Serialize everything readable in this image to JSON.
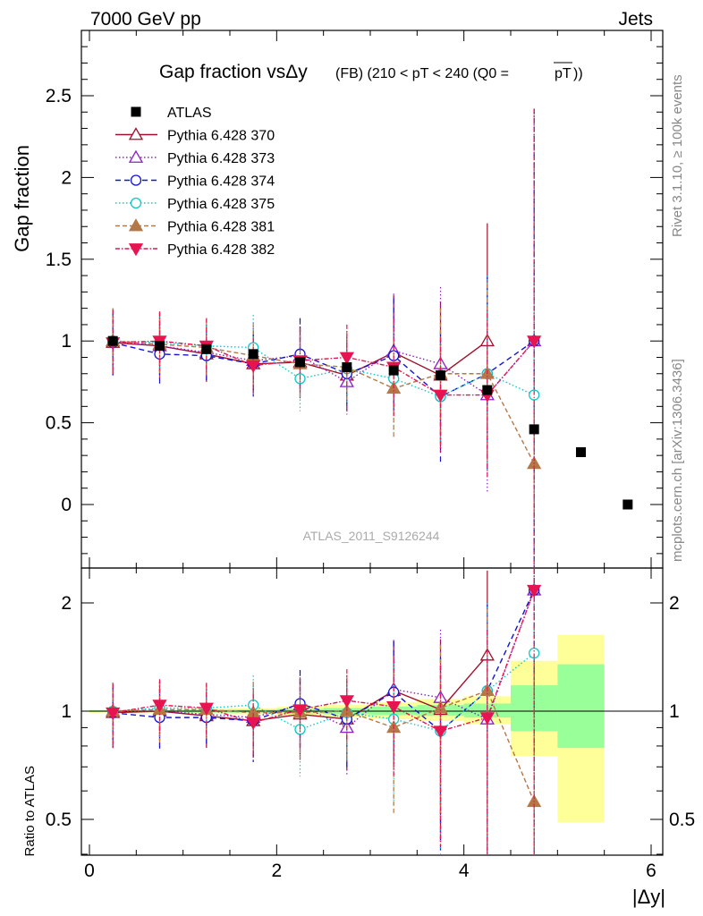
{
  "header": {
    "left": "7000 GeV pp",
    "right": "Jets"
  },
  "side_labels": {
    "rivet": "Rivet 3.1.10, ≥ 100k events",
    "mcplots": "mcplots.cern.ch [arXiv:1306.3436]"
  },
  "watermark": "ATLAS_2011_S9126244",
  "chart_data": {
    "type": "scatter",
    "title_main": "Gap fraction vsΔy",
    "title_sub": "(FB) (210 < pT < 240 (Q0 =",
    "title_pt": "pT",
    "title_close": "))",
    "xlabel": "|Δy|",
    "ylabel": "Gap fraction",
    "ratio_ylabel": "Ratio to ATLAS",
    "xlim": [
      -0.1,
      6.1
    ],
    "ylim": [
      -0.33,
      2.9
    ],
    "ratio_ylim": [
      0.35,
      2.3
    ],
    "xticks": [
      "0",
      "2",
      "4",
      "6"
    ],
    "yticks": [
      "0",
      "0.5",
      "1",
      "1.5",
      "2",
      "2.5"
    ],
    "ratio_yticks": [
      "0.5",
      "1",
      "2"
    ],
    "legend_position": "top-left",
    "x": [
      0.25,
      0.75,
      1.25,
      1.75,
      2.25,
      2.75,
      3.25,
      3.75,
      4.25,
      4.75,
      5.25,
      5.75
    ],
    "atlas": {
      "name": "ATLAS",
      "color": "#000000",
      "values": [
        1.0,
        0.97,
        0.95,
        0.92,
        0.87,
        0.84,
        0.82,
        0.79,
        0.7,
        0.46,
        0.32,
        0.0
      ],
      "band_edges": [
        0,
        0.5,
        1.0,
        1.5,
        2.0,
        2.5,
        3.0,
        3.5,
        4.0,
        4.5,
        5.0,
        5.5
      ],
      "band_yellow": [
        [
          0.99,
          1.01
        ],
        [
          0.99,
          1.01
        ],
        [
          0.985,
          1.015
        ],
        [
          0.98,
          1.02
        ],
        [
          0.97,
          1.03
        ],
        [
          0.96,
          1.04
        ],
        [
          0.95,
          1.06
        ],
        [
          0.94,
          1.08
        ],
        [
          0.92,
          1.1
        ],
        [
          0.75,
          1.38
        ],
        [
          0.49,
          1.63
        ]
      ],
      "band_green": [
        [
          0.995,
          1.005
        ],
        [
          0.995,
          1.005
        ],
        [
          0.99,
          1.01
        ],
        [
          0.99,
          1.01
        ],
        [
          0.985,
          1.015
        ],
        [
          0.98,
          1.02
        ],
        [
          0.975,
          1.03
        ],
        [
          0.97,
          1.04
        ],
        [
          0.96,
          1.05
        ],
        [
          0.88,
          1.18
        ],
        [
          0.79,
          1.35
        ]
      ]
    },
    "series": [
      {
        "name": "Pythia 6.428 370",
        "color": "#a0102a",
        "dash": "",
        "marker": "triangle-open",
        "values": [
          0.99,
          0.97,
          0.92,
          0.86,
          0.87,
          0.79,
          0.93,
          0.79,
          1.0,
          null
        ],
        "errors": [
          0.2,
          0.2,
          0.17,
          0.18,
          0.22,
          0.22,
          0.35,
          0.45,
          0.72,
          null
        ],
        "ratio": [
          0.99,
          1.0,
          0.97,
          0.94,
          0.98,
          0.95,
          1.14,
          1.01,
          1.43,
          null
        ]
      },
      {
        "name": "Pythia 6.428 373",
        "color": "#8b1ec8",
        "dash": "1.5,2.5",
        "marker": "triangle-open",
        "values": [
          1.0,
          0.97,
          0.93,
          0.88,
          0.91,
          0.75,
          0.94,
          0.86,
          0.67,
          1.0
        ],
        "errors": [
          0.2,
          0.2,
          0.17,
          0.2,
          0.22,
          0.2,
          0.35,
          0.47,
          0.6,
          1.42
        ],
        "ratio": [
          1.0,
          1.0,
          0.98,
          0.96,
          1.04,
          0.9,
          1.15,
          1.09,
          0.95,
          2.17
        ]
      },
      {
        "name": "Pythia 6.428 374",
        "color": "#1414d2",
        "dash": "6,4",
        "marker": "circle-open",
        "values": [
          0.99,
          0.92,
          0.91,
          0.86,
          0.92,
          0.8,
          0.91,
          0.66,
          0.8,
          1.0
        ],
        "errors": [
          0.2,
          0.18,
          0.15,
          0.2,
          0.22,
          0.22,
          0.35,
          0.4,
          0.6,
          1.42
        ],
        "ratio": [
          0.99,
          0.96,
          0.96,
          0.94,
          1.05,
          0.95,
          1.13,
          0.88,
          1.14,
          2.17
        ]
      },
      {
        "name": "Pythia 6.428 375",
        "color": "#10c8c8",
        "dash": "1.5,2.5",
        "marker": "circle-open",
        "values": [
          1.0,
          0.99,
          0.97,
          0.96,
          0.77,
          0.83,
          0.77,
          0.66,
          0.8,
          0.67
        ],
        "errors": [
          0.2,
          0.18,
          0.17,
          0.2,
          0.2,
          0.22,
          0.33,
          0.35,
          0.6,
          0.8
        ],
        "ratio": [
          1.0,
          1.02,
          1.02,
          1.04,
          0.89,
          0.99,
          0.95,
          0.88,
          1.14,
          1.45
        ]
      },
      {
        "name": "Pythia 6.428 381",
        "color": "#b47846",
        "dash": "5,3",
        "marker": "triangle-filled",
        "values": [
          1.0,
          0.98,
          0.96,
          0.91,
          0.86,
          0.84,
          0.71,
          0.8,
          0.8,
          0.25
        ],
        "errors": [
          0.2,
          0.2,
          0.17,
          0.2,
          0.22,
          0.22,
          0.3,
          0.4,
          0.55,
          0.3
        ],
        "ratio": [
          1.0,
          1.01,
          1.01,
          0.99,
          0.99,
          1.0,
          0.9,
          1.02,
          1.14,
          0.56
        ]
      },
      {
        "name": "Pythia 6.428 382",
        "color": "#e61450",
        "dash": "5,2,1.5,2",
        "marker": "triangle-down-filled",
        "values": [
          0.99,
          1.0,
          0.97,
          0.85,
          0.88,
          0.9,
          0.84,
          0.67,
          0.67,
          1.0
        ],
        "errors": [
          0.2,
          0.18,
          0.17,
          0.17,
          0.2,
          0.2,
          0.3,
          0.35,
          0.5,
          1.42
        ],
        "ratio": [
          0.99,
          1.04,
          1.02,
          0.93,
          1.01,
          1.07,
          1.03,
          0.88,
          0.96,
          2.17
        ]
      }
    ]
  }
}
